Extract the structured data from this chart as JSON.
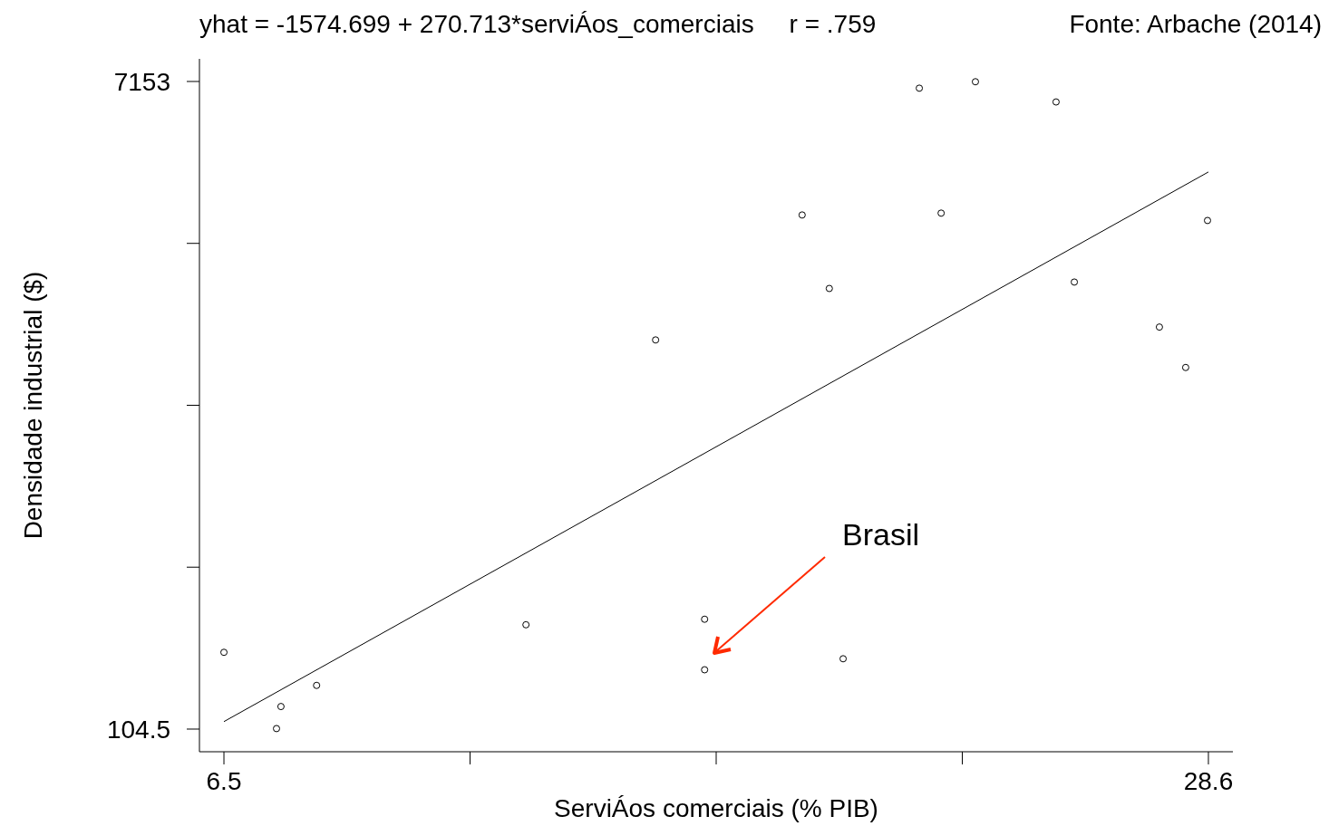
{
  "chart_data": {
    "type": "scatter",
    "title": "yhat = -1574.699 + 270.713*serviÁos_comerciais     r = .759",
    "xlabel": "ServiÁos comerciais (% PIB)",
    "ylabel": "Densidade industrial ($)",
    "annotations": [
      "Fonte: Arbache (2014)",
      "Brasil"
    ],
    "xlim": [
      5.95,
      29.15
    ],
    "ylim": [
      -142,
      7399
    ],
    "xticks": [
      6.5,
      {
        "value": 12.025,
        "label": null
      },
      {
        "value": 17.55,
        "label": null
      },
      {
        "value": 23.075,
        "label": null
      },
      28.6
    ],
    "yticks": [
      104.5,
      {
        "value": 1866.625,
        "label": null
      },
      {
        "value": 3628.75,
        "label": null
      },
      {
        "value": 5390.875,
        "label": null
      },
      7153
    ],
    "grid": false,
    "series": [
      {
        "marker": "circle",
        "color": "#000000",
        "x": [
          6.5,
          7.68,
          7.78,
          8.58,
          13.28,
          16.19,
          17.29,
          17.29,
          19.48,
          20.09,
          20.4,
          22.11,
          22.6,
          23.37,
          25.18,
          25.59,
          27.5,
          28.09,
          28.58
        ],
        "values": [
          940,
          110,
          350,
          580,
          1240,
          4340,
          1300,
          750,
          5700,
          4900,
          870,
          7080,
          5720,
          7150,
          6930,
          4970,
          4480,
          4040,
          5640
        ]
      },
      {
        "type": "line",
        "marker": "none",
        "color": "#000000",
        "x": [
          6.5,
          28.6
        ],
        "values": [
          186,
          6168
        ]
      }
    ]
  }
}
